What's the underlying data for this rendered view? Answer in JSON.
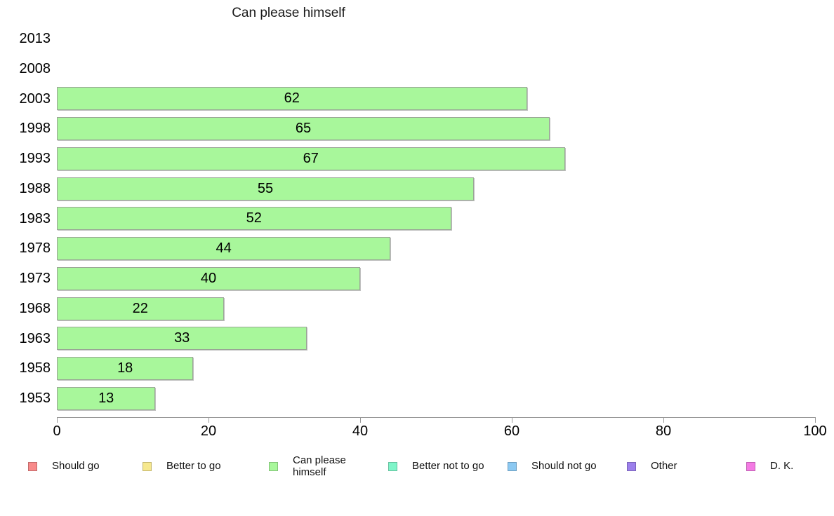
{
  "chart_data": {
    "type": "bar",
    "orientation": "horizontal",
    "title": "Can please himself",
    "categories": [
      "2013",
      "2008",
      "2003",
      "1998",
      "1993",
      "1988",
      "1983",
      "1978",
      "1973",
      "1968",
      "1963",
      "1958",
      "1953"
    ],
    "values": [
      null,
      null,
      62,
      65,
      67,
      55,
      52,
      44,
      40,
      22,
      33,
      18,
      13
    ],
    "value_labels_shown": true,
    "xlabel": "",
    "ylabel": "",
    "xlim": [
      0,
      100
    ],
    "x_ticks": [
      "0",
      "20",
      "40",
      "60",
      "80",
      "100"
    ],
    "grid": false,
    "bar_fill_color": "#A8F79B",
    "bar_border_color": "#9AA596",
    "axis_color": "#999999",
    "legend_position": "bottom",
    "legend": [
      {
        "label": "Should go",
        "color": "#F88A8A",
        "border": "#C26A6A",
        "two_line": false
      },
      {
        "label": "Better to go",
        "color": "#F6E88E",
        "border": "#C2B56E",
        "two_line": false
      },
      {
        "label": "Can please himself",
        "color": "#A8F79B",
        "border": "#82C277",
        "two_line": true
      },
      {
        "label": "Better not to go",
        "color": "#7FF5C9",
        "border": "#62BF9C",
        "two_line": false
      },
      {
        "label": "Should not go",
        "color": "#8CC9F2",
        "border": "#6C9DBF",
        "two_line": false
      },
      {
        "label": "Other",
        "color": "#9C80EC",
        "border": "#7A63BA",
        "two_line": false
      },
      {
        "label": "D. K.",
        "color": "#F47BE4",
        "border": "#BF5FB2",
        "two_line": false
      }
    ]
  }
}
